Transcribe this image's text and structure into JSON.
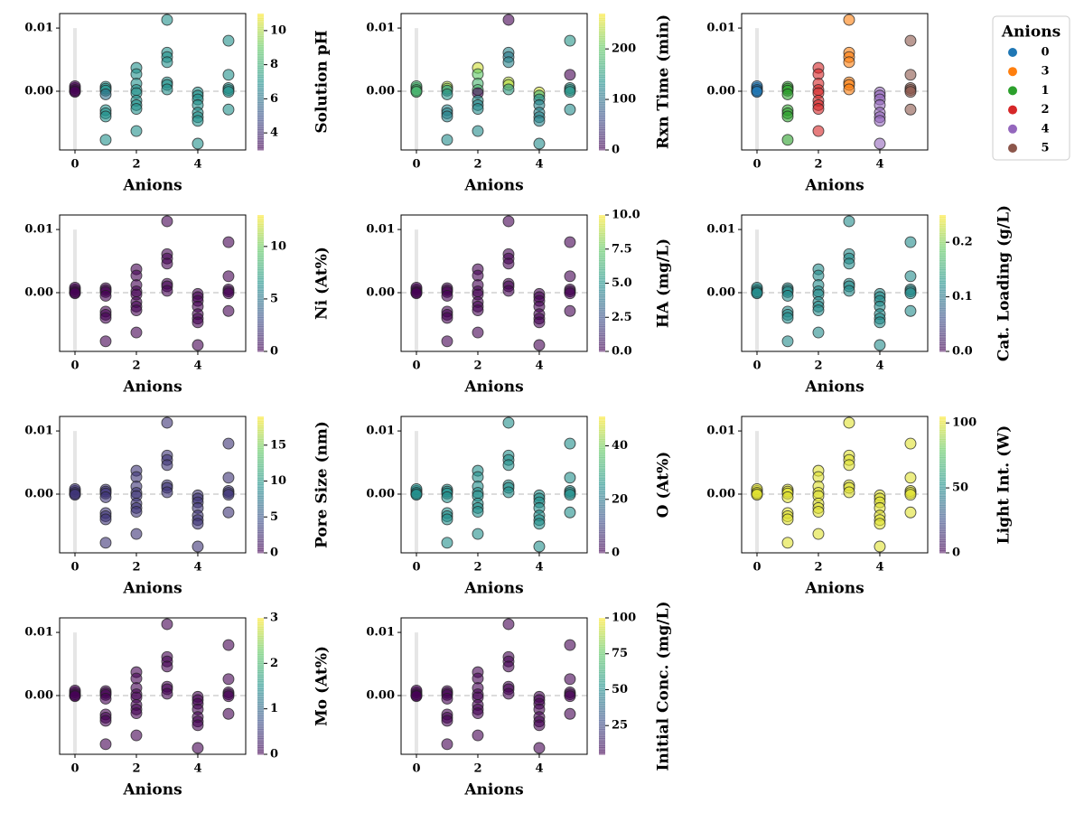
{
  "chart_data": {
    "type": "scatter",
    "x_label": "Anions",
    "xlim": [
      -0.5,
      5.56
    ],
    "ylim": [
      -0.0093,
      0.0123
    ],
    "xticks": [
      0,
      2,
      4
    ],
    "yticks": [
      {
        "value": 0,
        "label": "0.00"
      },
      {
        "value": 0.01,
        "label": "0.01"
      }
    ],
    "x": [
      0,
      0,
      0,
      0,
      0,
      1,
      1,
      1,
      1,
      1,
      1,
      1,
      1,
      2,
      2,
      2,
      2,
      2,
      2,
      2,
      2,
      2,
      3,
      3,
      3,
      3,
      3,
      3,
      3,
      4,
      4,
      4,
      4,
      4,
      4,
      4,
      4,
      5,
      5,
      5,
      5,
      5,
      5
    ],
    "y": [
      0.0005,
      0.0008,
      0.0,
      0.0002,
      -0.0001,
      0.0007,
      0.0004,
      0.0001,
      -0.0005,
      -0.003,
      -0.0035,
      -0.004,
      -0.0077,
      0.0037,
      0.0027,
      0.0012,
      0.0002,
      -0.0003,
      -0.0015,
      -0.0022,
      -0.0028,
      -0.0063,
      0.0113,
      0.0061,
      0.0054,
      0.0046,
      0.0014,
      0.001,
      0.0003,
      -0.0002,
      -0.0007,
      -0.0013,
      -0.0022,
      -0.0034,
      -0.0041,
      -0.0047,
      -0.0083,
      0.008,
      0.0026,
      0.0005,
      0.0002,
      -0.0001,
      -0.0029
    ],
    "panels": [
      {
        "colorbar_label": "Solution pH",
        "clim": [
          3,
          11
        ],
        "cticks": [
          4,
          6,
          8,
          10
        ],
        "c": [
          3,
          3,
          3,
          3,
          3,
          7,
          7,
          7,
          6,
          7,
          7,
          7,
          7,
          7,
          7,
          7,
          7,
          7,
          7,
          7,
          7,
          7,
          7,
          7,
          7,
          7,
          7,
          7,
          7,
          7,
          7,
          7,
          7,
          7,
          7,
          7,
          7,
          7,
          7,
          7,
          7,
          7,
          7
        ]
      },
      {
        "colorbar_label": "Rxn Time (min)",
        "clim": [
          0,
          270
        ],
        "cticks": [
          0,
          100,
          200
        ],
        "c": [
          180,
          180,
          180,
          180,
          180,
          240,
          220,
          140,
          140,
          120,
          120,
          120,
          130,
          250,
          200,
          180,
          180,
          0,
          140,
          120,
          130,
          130,
          0,
          120,
          110,
          120,
          240,
          240,
          150,
          250,
          180,
          130,
          120,
          120,
          120,
          120,
          130,
          140,
          0,
          140,
          140,
          140,
          130
        ]
      },
      {
        "legend": {
          "title": "Anions",
          "corner": "outside-right",
          "entries": [
            {
              "name": "0",
              "value": 0,
              "color": "#1f77b4"
            },
            {
              "name": "3",
              "value": 3,
              "color": "#ff7f0e"
            },
            {
              "name": "1",
              "value": 1,
              "color": "#2ca02c"
            },
            {
              "name": "2",
              "value": 2,
              "color": "#d62728"
            },
            {
              "name": "4",
              "value": 4,
              "color": "#9467bd"
            },
            {
              "name": "5",
              "value": 5,
              "color": "#8c564b"
            }
          ]
        },
        "c": [
          0,
          0,
          0,
          0,
          0,
          1,
          1,
          1,
          1,
          1,
          1,
          1,
          1,
          2,
          2,
          2,
          2,
          2,
          2,
          2,
          2,
          2,
          3,
          3,
          3,
          3,
          3,
          3,
          3,
          4,
          4,
          4,
          4,
          4,
          4,
          4,
          4,
          5,
          5,
          5,
          5,
          5,
          5
        ]
      },
      {
        "colorbar_label": "Ni (At%)",
        "clim": [
          0,
          13
        ],
        "cticks": [
          0,
          5,
          10
        ],
        "c": [
          0,
          0,
          0,
          0,
          0,
          0,
          0,
          0,
          0,
          0,
          0,
          0,
          0,
          0,
          0,
          0,
          0,
          0,
          0,
          0,
          0,
          0,
          0,
          0,
          0,
          0,
          0,
          0,
          0,
          0,
          0,
          0,
          0,
          0,
          0,
          0,
          0,
          0,
          0,
          0,
          0,
          0,
          0
        ]
      },
      {
        "colorbar_label": "HA (mg/L)",
        "clim": [
          0,
          10
        ],
        "cticks": [
          {
            "value": 0,
            "label": "0.0"
          },
          {
            "value": 2.5,
            "label": "2.5"
          },
          {
            "value": 5,
            "label": "5.0"
          },
          {
            "value": 7.5,
            "label": "7.5"
          },
          {
            "value": 10,
            "label": "10.0"
          }
        ],
        "c": [
          0,
          0,
          0,
          0,
          0,
          0,
          0,
          0,
          0,
          0,
          0,
          0,
          0,
          0,
          0,
          0,
          0,
          0,
          0,
          0,
          0,
          0,
          0,
          0,
          0,
          0,
          0,
          0,
          0,
          0,
          0,
          0,
          0,
          0,
          0,
          0,
          0,
          0,
          0,
          0,
          0,
          0,
          0
        ]
      },
      {
        "colorbar_label": "Cat. Loading (g/L)",
        "clim": [
          0,
          0.25
        ],
        "cticks": [
          {
            "value": 0,
            "label": "0.0"
          },
          0.1,
          0.2
        ],
        "c": [
          0.12,
          0.12,
          0.12,
          0.12,
          0.12,
          0.12,
          0.12,
          0.12,
          0.12,
          0.12,
          0.12,
          0.12,
          0.12,
          0.12,
          0.12,
          0.12,
          0.12,
          0.12,
          0.12,
          0.12,
          0.12,
          0.12,
          0.12,
          0.12,
          0.12,
          0.12,
          0.12,
          0.12,
          0.12,
          0.12,
          0.12,
          0.12,
          0.12,
          0.12,
          0.12,
          0.12,
          0.12,
          0.12,
          0.12,
          0.12,
          0.12,
          0.12,
          0.12
        ]
      },
      {
        "colorbar_label": "Pore Size (nm)",
        "clim": [
          0,
          19
        ],
        "cticks": [
          0,
          5,
          10,
          15
        ],
        "c": [
          3,
          3,
          3,
          3,
          3,
          3,
          3,
          3,
          3,
          3,
          3,
          3,
          3,
          3,
          3,
          3,
          3,
          3,
          3,
          3,
          3,
          3,
          3,
          3,
          3,
          3,
          3,
          3,
          3,
          3,
          3,
          3,
          3,
          3,
          3,
          3,
          3,
          3,
          3,
          3,
          3,
          3,
          3
        ]
      },
      {
        "colorbar_label": "O (At%)",
        "clim": [
          0,
          51
        ],
        "cticks": [
          0,
          20,
          40
        ],
        "c": [
          25,
          25,
          25,
          25,
          25,
          25,
          25,
          25,
          25,
          25,
          25,
          25,
          25,
          25,
          25,
          25,
          25,
          25,
          25,
          25,
          25,
          25,
          25,
          25,
          25,
          25,
          25,
          25,
          25,
          25,
          25,
          25,
          25,
          25,
          25,
          25,
          25,
          25,
          25,
          25,
          25,
          25,
          25
        ]
      },
      {
        "colorbar_label": "Light Int. (W)",
        "clim": [
          0,
          105
        ],
        "cticks": [
          0,
          50,
          100
        ],
        "c": [
          100,
          100,
          100,
          100,
          100,
          100,
          100,
          100,
          100,
          100,
          100,
          100,
          100,
          100,
          100,
          100,
          100,
          100,
          100,
          100,
          100,
          100,
          100,
          100,
          100,
          100,
          100,
          100,
          100,
          100,
          100,
          100,
          100,
          100,
          100,
          100,
          100,
          100,
          100,
          100,
          100,
          100,
          100
        ]
      },
      {
        "colorbar_label": "Mo (At%)",
        "clim": [
          0,
          3
        ],
        "cticks": [
          0,
          1,
          2,
          3
        ],
        "c": [
          0,
          0,
          0,
          0,
          0,
          0,
          0,
          0,
          0,
          0,
          0,
          0,
          0,
          0,
          0,
          0,
          0,
          0,
          0,
          0,
          0,
          0,
          0,
          0,
          0,
          0,
          0,
          0,
          0,
          0,
          0,
          0,
          0,
          0,
          0,
          0,
          0,
          0,
          0,
          0,
          0,
          0,
          0
        ]
      },
      {
        "colorbar_label": "Initial Conc. (mg/L)",
        "clim": [
          5,
          100
        ],
        "cticks": [
          25,
          50,
          75,
          100
        ],
        "c": [
          5,
          5,
          5,
          5,
          5,
          5,
          5,
          5,
          5,
          5,
          5,
          5,
          5,
          5,
          5,
          5,
          5,
          5,
          5,
          5,
          5,
          5,
          5,
          5,
          5,
          5,
          5,
          5,
          5,
          5,
          5,
          5,
          5,
          5,
          5,
          5,
          5,
          5,
          5,
          5,
          5,
          5,
          5
        ]
      }
    ]
  }
}
